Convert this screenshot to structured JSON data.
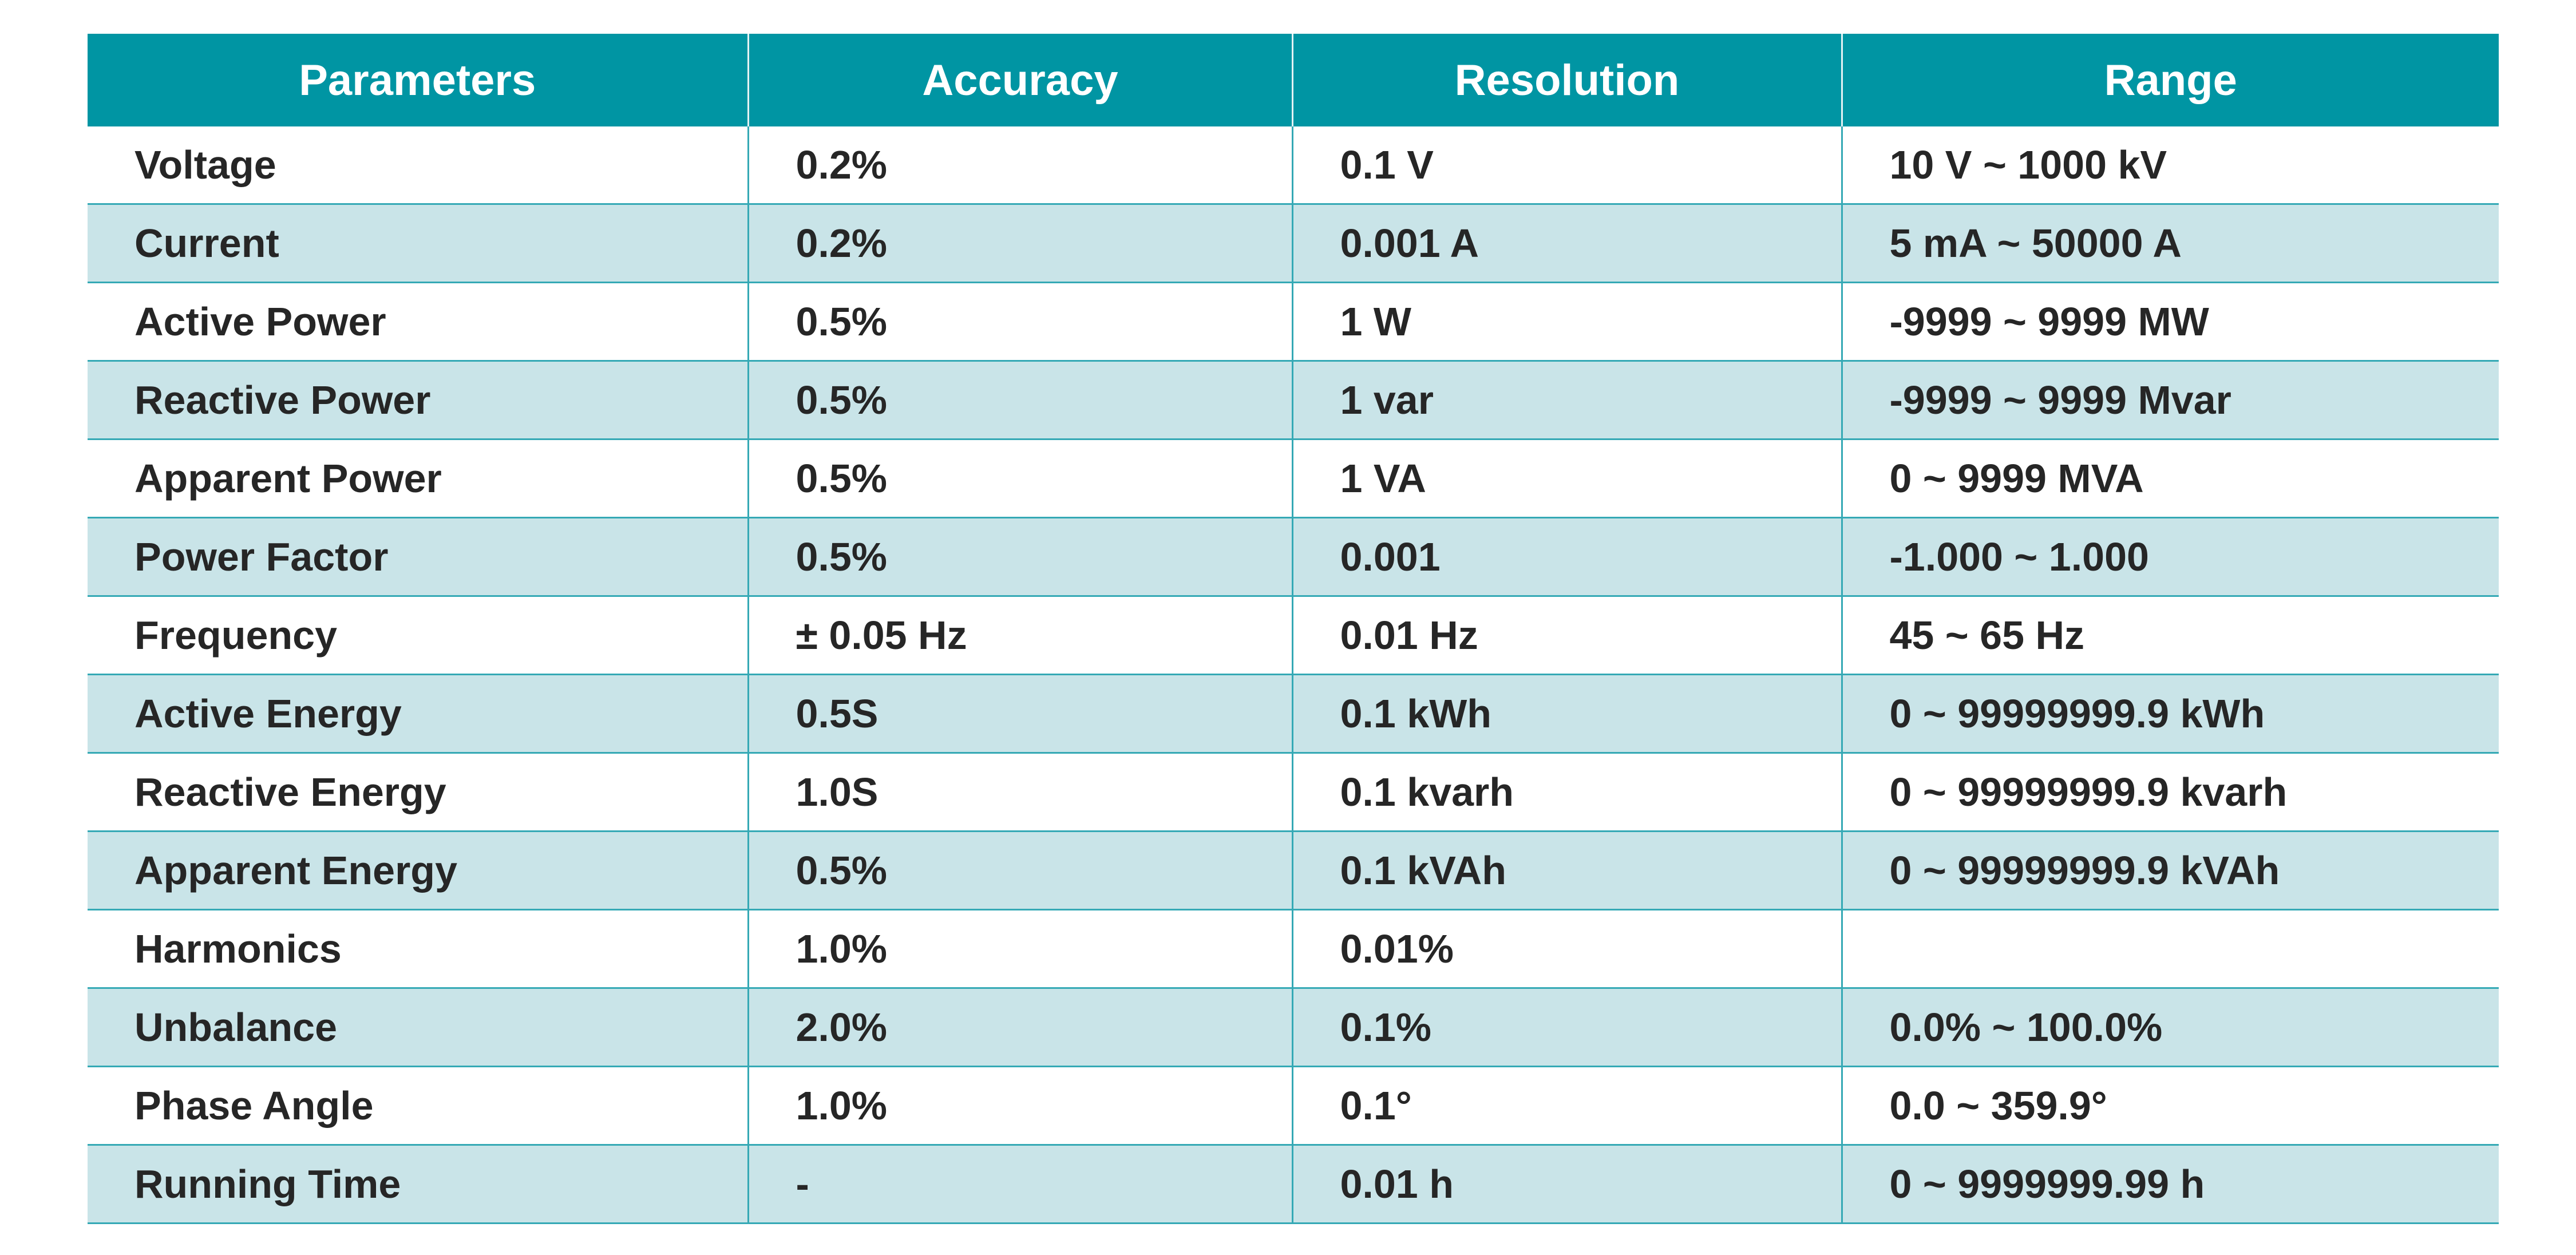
{
  "table": {
    "headers": [
      "Parameters",
      "Accuracy",
      "Resolution",
      "Range"
    ],
    "rows": [
      [
        "Voltage",
        "0.2%",
        "0.1 V",
        "10 V ~ 1000 kV"
      ],
      [
        "Current",
        "0.2%",
        "0.001 A",
        "5 mA ~ 50000 A"
      ],
      [
        "Active Power",
        "0.5%",
        "1 W",
        "-9999 ~ 9999 MW"
      ],
      [
        "Reactive Power",
        "0.5%",
        "1 var",
        "-9999 ~ 9999 Mvar"
      ],
      [
        "Apparent Power",
        "0.5%",
        "1 VA",
        "0 ~ 9999 MVA"
      ],
      [
        "Power Factor",
        "0.5%",
        "0.001",
        "-1.000 ~ 1.000"
      ],
      [
        "Frequency",
        "± 0.05 Hz",
        "0.01 Hz",
        "45 ~ 65 Hz"
      ],
      [
        "Active Energy",
        "0.5S",
        "0.1 kWh",
        "0 ~ 99999999.9 kWh"
      ],
      [
        "Reactive Energy",
        "1.0S",
        "0.1 kvarh",
        "0 ~ 99999999.9 kvarh"
      ],
      [
        "Apparent Energy",
        "0.5%",
        "0.1 kVAh",
        "0 ~ 99999999.9 kVAh"
      ],
      [
        "Harmonics",
        "1.0%",
        "0.01%",
        ""
      ],
      [
        "Unbalance",
        "2.0%",
        "0.1%",
        "0.0% ~ 100.0%"
      ],
      [
        "Phase Angle",
        "1.0%",
        "0.1°",
        "0.0 ~ 359.9°"
      ],
      [
        "Running Time",
        "-",
        "0.01 h",
        "0 ~ 9999999.99 h"
      ]
    ]
  },
  "colors": {
    "header_bg": "#0095a3",
    "header_text": "#ffffff",
    "row_alt_bg": "#c9e4e8",
    "row_bg": "#ffffff",
    "grid_line": "#35a9b5",
    "cell_text": "#262626"
  }
}
